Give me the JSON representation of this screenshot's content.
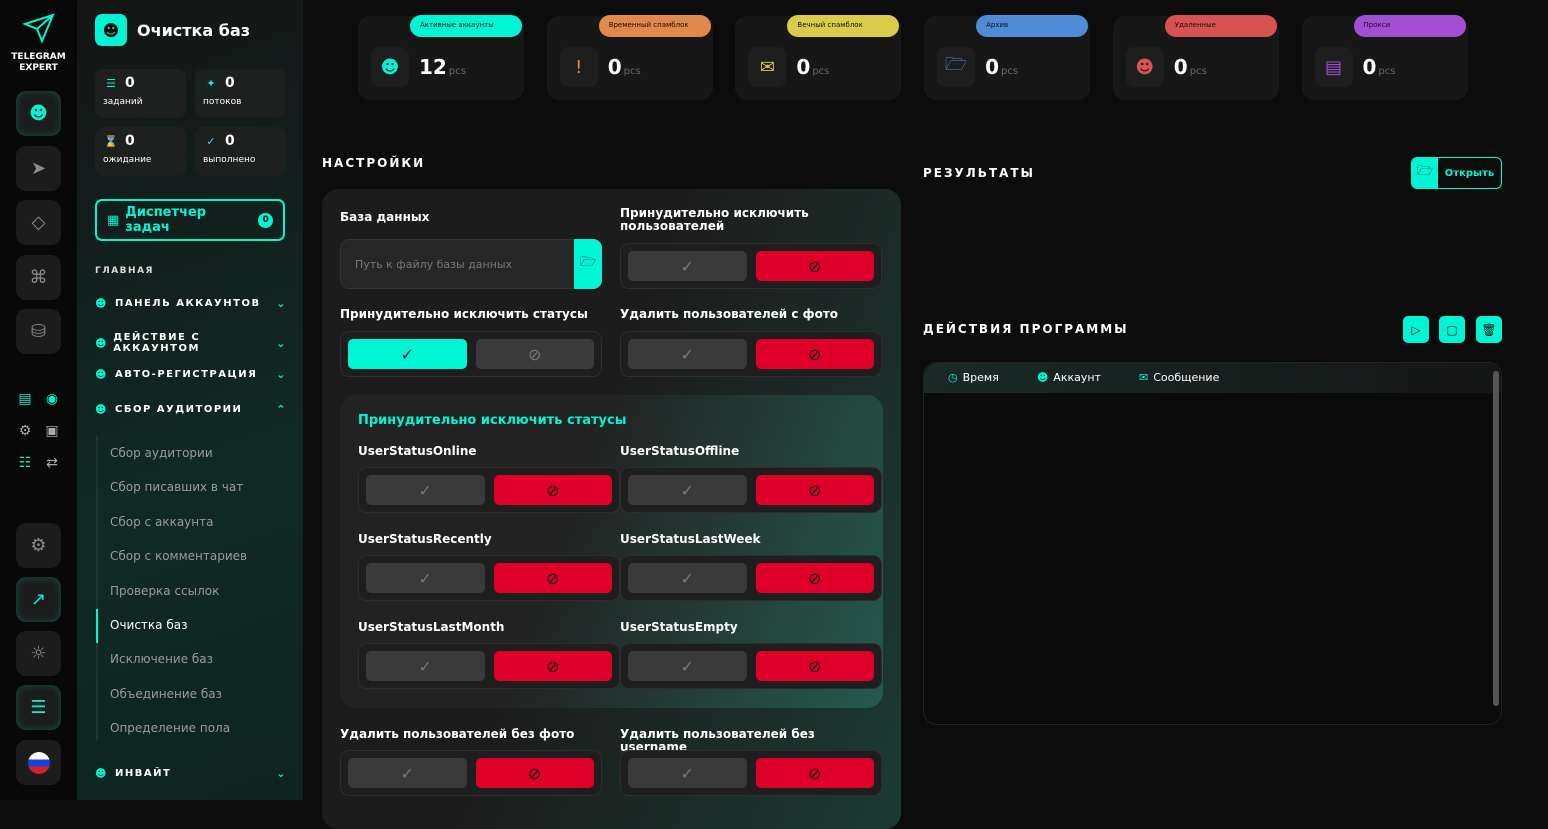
{
  "brand": {
    "line1": "TELEGRAM",
    "line2": "EXPERT"
  },
  "accent": "#00f5d4",
  "danger": "#de0029",
  "rail": {
    "icons": [
      "user-icon",
      "send-icon",
      "diamond-icon",
      "command-icon",
      "database-icon"
    ],
    "tools": [
      "server-check-icon",
      "user-network-icon",
      "gear-list-icon",
      "code-window-icon",
      "document-check-icon",
      "convert-icon"
    ],
    "bottom": [
      "settings-icon",
      "external-link-icon",
      "theme-icon",
      "sliders-icon",
      "flag-ru-icon"
    ]
  },
  "sidebar": {
    "title": "Очистка баз",
    "stats": [
      {
        "value": "0",
        "label": "заданий",
        "icon": "task-list-icon"
      },
      {
        "value": "0",
        "label": "потоков",
        "icon": "share-icon"
      },
      {
        "value": "0",
        "label": "ожидание",
        "icon": "hourglass-icon"
      },
      {
        "value": "0",
        "label": "выполнено",
        "icon": "check-circle-icon"
      }
    ],
    "dispatcher": {
      "label": "Диспетчер задач",
      "count": "0"
    },
    "section": "ГЛАВНАЯ",
    "nav": [
      {
        "label": "ПАНЕЛЬ АККАУНТОВ",
        "expanded": false
      },
      {
        "label": "ДЕЙСТВИЕ С АККАУНТОМ",
        "expanded": false
      },
      {
        "label": "АВТО-РЕГИСТРАЦИЯ",
        "expanded": false
      },
      {
        "label": "СБОР АУДИТОРИИ",
        "expanded": true
      },
      {
        "label": "ИНВАЙТ",
        "expanded": false
      }
    ],
    "subitems": [
      "Сбор аудитории",
      "Сбор писавших в чат",
      "Сбор с аккаунта",
      "Сбор с комментариев",
      "Проверка ссылок",
      "Очистка баз",
      "Исключение баз",
      "Объединение баз",
      "Определение пола"
    ],
    "active_sub": "Очистка баз"
  },
  "cards": [
    {
      "tag": "Активные аккаунты",
      "value": "12",
      "unit": "pcs",
      "color": "#00f5d4",
      "icon": "user-heart-icon"
    },
    {
      "tag": "Временный спамблок",
      "value": "0",
      "unit": "pcs",
      "color": "#e0894a",
      "icon": "alert-octagon-icon"
    },
    {
      "tag": "Вечный спамблок",
      "value": "0",
      "unit": "pcs",
      "color": "#d8cc4a",
      "icon": "mail-warning-icon"
    },
    {
      "tag": "Архив",
      "value": "0",
      "unit": "pcs",
      "color": "#4f8bd6",
      "icon": "folder-user-icon"
    },
    {
      "tag": "Удаленные",
      "value": "0",
      "unit": "pcs",
      "color": "#d95252",
      "icon": "user-x-icon"
    },
    {
      "tag": "Прокси",
      "value": "0",
      "unit": "pcs",
      "color": "#a24fd6",
      "icon": "proxy-icon"
    }
  ],
  "settings": {
    "title": "НАСТРОЙКИ",
    "db_label": "База данных",
    "db_placeholder": "Путь к файлу базы данных",
    "force_users": {
      "label": "Принудительно исключить пользователей",
      "state": "no"
    },
    "force_statuses": {
      "label": "Принудительно исключить статусы",
      "state": "yes"
    },
    "del_with_photo": {
      "label": "Удалить пользователей с фото",
      "state": "no"
    },
    "statuses_title": "Принудительно исключить статусы",
    "statuses": [
      {
        "label": "UserStatusOnline",
        "state": "no"
      },
      {
        "label": "UserStatusOffline",
        "state": "no"
      },
      {
        "label": "UserStatusRecently",
        "state": "no"
      },
      {
        "label": "UserStatusLastWeek",
        "state": "no"
      },
      {
        "label": "UserStatusLastMonth",
        "state": "no"
      },
      {
        "label": "UserStatusEmpty",
        "state": "no"
      }
    ],
    "del_no_photo": {
      "label": "Удалить пользователей без фото",
      "state": "no"
    },
    "del_no_username": {
      "label": "Удалить пользователей без username",
      "state": "no"
    }
  },
  "results": {
    "title": "РЕЗУЛЬТАТЫ",
    "open_label": "Открыть"
  },
  "actions": {
    "title": "ДЕЙСТВИЯ ПРОГРАММЫ",
    "columns": [
      "Время",
      "Аккаунт",
      "Сообщение"
    ]
  }
}
